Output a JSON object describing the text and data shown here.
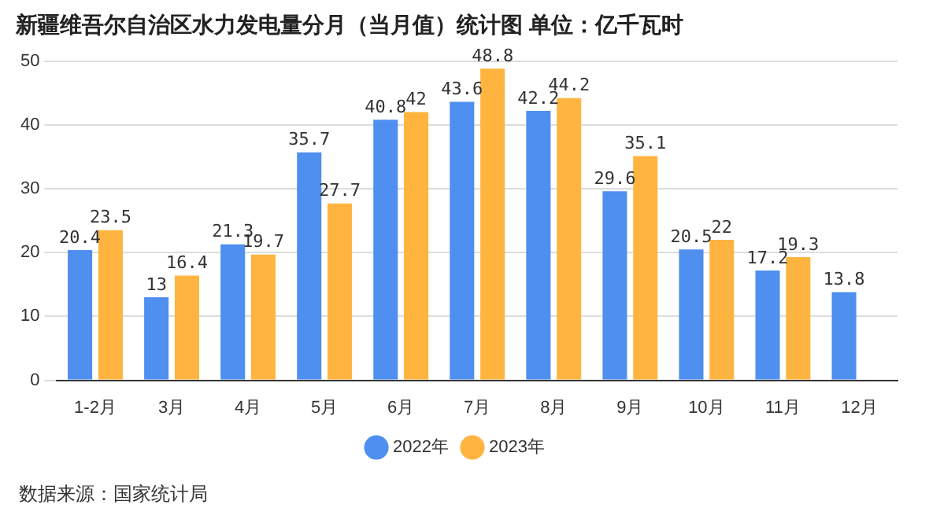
{
  "chart_data": {
    "type": "bar",
    "title": "新疆维吾尔自治区水力发电量分月（当月值）统计图 单位：亿千瓦时",
    "categories": [
      "1-2月",
      "3月",
      "4月",
      "5月",
      "6月",
      "7月",
      "8月",
      "9月",
      "10月",
      "11月",
      "12月"
    ],
    "series": [
      {
        "name": "2022年",
        "color": "#4e8fef",
        "values": [
          20.4,
          13,
          21.3,
          35.7,
          40.8,
          43.6,
          42.2,
          29.6,
          20.5,
          17.2,
          13.8
        ]
      },
      {
        "name": "2023年",
        "color": "#ffb440",
        "values": [
          23.5,
          16.4,
          19.7,
          27.7,
          42,
          48.8,
          44.2,
          35.1,
          22,
          19.3,
          null
        ]
      }
    ],
    "ylim": [
      0,
      50
    ],
    "yticks": [
      0,
      10,
      20,
      30,
      40,
      50
    ],
    "grid": "y",
    "legend": "bottom",
    "data_labels": true,
    "annotations": [
      "数据来源：国家统计局"
    ]
  }
}
